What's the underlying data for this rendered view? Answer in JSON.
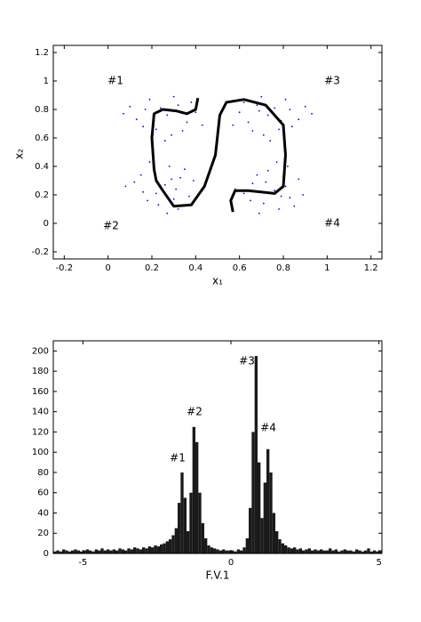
{
  "chart_data": [
    {
      "type": "scatter",
      "xlabel": "x₁",
      "ylabel": "x₂",
      "xlim": [
        -0.25,
        1.25
      ],
      "ylim": [
        -0.25,
        1.25
      ],
      "xticks": [
        -0.2,
        0,
        0.2,
        0.4,
        0.6,
        0.8,
        1,
        1.2
      ],
      "yticks": [
        -0.2,
        0,
        0.2,
        0.4,
        0.6,
        0.8,
        1,
        1.2
      ],
      "annotations": [
        "#1",
        "#3",
        "#2",
        "#4"
      ],
      "series": [
        {
          "color": "#0000ff",
          "type": "scatter",
          "x": [
            0.27,
            0.17,
            0.36,
            0.22,
            0.32,
            0.13,
            0.29,
            0.19,
            0.4,
            0.24,
            0.34,
            0.1,
            0.3,
            0.16,
            0.38,
            0.21,
            0.43,
            0.07,
            0.26,
            0.31,
            0.26,
            0.3,
            0.21,
            0.16,
            0.33,
            0.23,
            0.12,
            0.37,
            0.28,
            0.31,
            0.15,
            0.32,
            0.39,
            0.18,
            0.35,
            0.22,
            0.19,
            0.27,
            0.08,
            0.29,
            0.73,
            0.83,
            0.64,
            0.78,
            0.68,
            0.87,
            0.71,
            0.81,
            0.6,
            0.76,
            0.66,
            0.9,
            0.7,
            0.84,
            0.62,
            0.79,
            0.57,
            0.93,
            0.74,
            0.69,
            0.76,
            0.8,
            0.71,
            0.66,
            0.83,
            0.73,
            0.62,
            0.87,
            0.78,
            0.81,
            0.65,
            0.82,
            0.89,
            0.68,
            0.85,
            0.72,
            0.69,
            0.77,
            0.58,
            0.79
          ],
          "values": [
            0.76,
            0.8,
            0.71,
            0.66,
            0.83,
            0.73,
            0.62,
            0.87,
            0.78,
            0.81,
            0.65,
            0.82,
            0.89,
            0.68,
            0.85,
            0.72,
            0.69,
            0.77,
            0.58,
            0.79,
            0.27,
            0.17,
            0.36,
            0.22,
            0.32,
            0.13,
            0.29,
            0.19,
            0.4,
            0.24,
            0.34,
            0.1,
            0.3,
            0.16,
            0.38,
            0.21,
            0.43,
            0.07,
            0.26,
            0.31,
            0.76,
            0.8,
            0.71,
            0.66,
            0.83,
            0.73,
            0.62,
            0.87,
            0.78,
            0.81,
            0.65,
            0.82,
            0.89,
            0.68,
            0.85,
            0.72,
            0.69,
            0.77,
            0.58,
            0.79,
            0.23,
            0.33,
            0.14,
            0.28,
            0.18,
            0.37,
            0.21,
            0.31,
            0.1,
            0.26,
            0.16,
            0.4,
            0.2,
            0.34,
            0.12,
            0.29,
            0.07,
            0.43,
            0.24,
            0.19
          ]
        },
        {
          "color": "#000000",
          "type": "line",
          "x": [
            0.41,
            0.4,
            0.36,
            0.31,
            0.25,
            0.21,
            0.2,
            0.21,
            0.22,
            0.25,
            0.3,
            0.38,
            0.44,
            0.49,
            0.51,
            0.54,
            0.62,
            0.72,
            0.8,
            0.81,
            0.8,
            0.76,
            0.64,
            0.58,
            0.56,
            0.57
          ],
          "values": [
            0.88,
            0.8,
            0.77,
            0.79,
            0.8,
            0.77,
            0.6,
            0.38,
            0.3,
            0.23,
            0.12,
            0.13,
            0.26,
            0.48,
            0.76,
            0.85,
            0.87,
            0.83,
            0.69,
            0.48,
            0.26,
            0.21,
            0.23,
            0.23,
            0.16,
            0.08
          ]
        }
      ]
    },
    {
      "type": "histogram",
      "xlabel": "F.V.1",
      "xlim": [
        -6,
        5.1
      ],
      "ylim": [
        0,
        210
      ],
      "xticks": [
        -5,
        0,
        5
      ],
      "yticks": [
        0,
        20,
        40,
        60,
        80,
        100,
        120,
        140,
        160,
        180,
        200
      ],
      "color": "#1a1a1a",
      "annotations": [
        "#1",
        "#2",
        "#3",
        "#4"
      ],
      "bins": [
        -6,
        -5.9,
        -5.8,
        -5.7,
        -5.6,
        -5.5,
        -5.4,
        -5.3,
        -5.2,
        -5.1,
        -5,
        -4.9,
        -4.8,
        -4.7,
        -4.6,
        -4.5,
        -4.4,
        -4.3,
        -4.2,
        -4.1,
        -4,
        -3.9,
        -3.8,
        -3.7,
        -3.6,
        -3.5,
        -3.4,
        -3.3,
        -3.2,
        -3.1,
        -3,
        -2.9,
        -2.8,
        -2.7,
        -2.6,
        -2.5,
        -2.4,
        -2.3,
        -2.2,
        -2.1,
        -2,
        -1.9,
        -1.8,
        -1.7,
        -1.6,
        -1.5,
        -1.4,
        -1.3,
        -1.2,
        -1.1,
        -1,
        -0.9,
        -0.8,
        -0.7,
        -0.6,
        -0.5,
        -0.4,
        -0.3,
        -0.2,
        -0.1,
        0,
        0.1,
        0.2,
        0.3,
        0.4,
        0.5,
        0.6,
        0.7,
        0.8,
        0.9,
        1,
        1.1,
        1.2,
        1.3,
        1.4,
        1.5,
        1.6,
        1.7,
        1.8,
        1.9,
        2,
        2.1,
        2.2,
        2.3,
        2.4,
        2.5,
        2.6,
        2.7,
        2.8,
        2.9,
        3,
        3.1,
        3.2,
        3.3,
        3.4,
        3.5,
        3.6,
        3.7,
        3.8,
        3.9,
        4,
        4.1,
        4.2,
        4.3,
        4.4,
        4.5,
        4.6,
        4.7,
        4.8,
        4.9,
        5,
        5.1
      ],
      "values": [
        2,
        3,
        2,
        4,
        3,
        2,
        3,
        4,
        3,
        2,
        3,
        4,
        3,
        2,
        4,
        3,
        5,
        3,
        4,
        3,
        4,
        3,
        5,
        4,
        3,
        5,
        4,
        6,
        5,
        4,
        6,
        5,
        7,
        6,
        8,
        7,
        9,
        10,
        12,
        14,
        18,
        25,
        50,
        80,
        55,
        22,
        60,
        125,
        110,
        60,
        30,
        15,
        8,
        6,
        5,
        4,
        3,
        4,
        3,
        3,
        3,
        2,
        4,
        3,
        6,
        15,
        45,
        120,
        195,
        90,
        35,
        70,
        103,
        80,
        40,
        22,
        14,
        10,
        8,
        6,
        5,
        6,
        4,
        5,
        3,
        4,
        5,
        3,
        4,
        3,
        4,
        3,
        3,
        5,
        3,
        4,
        2,
        3,
        4,
        3,
        3,
        2,
        4,
        3,
        2,
        3,
        5,
        2,
        3,
        2,
        3
      ]
    }
  ]
}
